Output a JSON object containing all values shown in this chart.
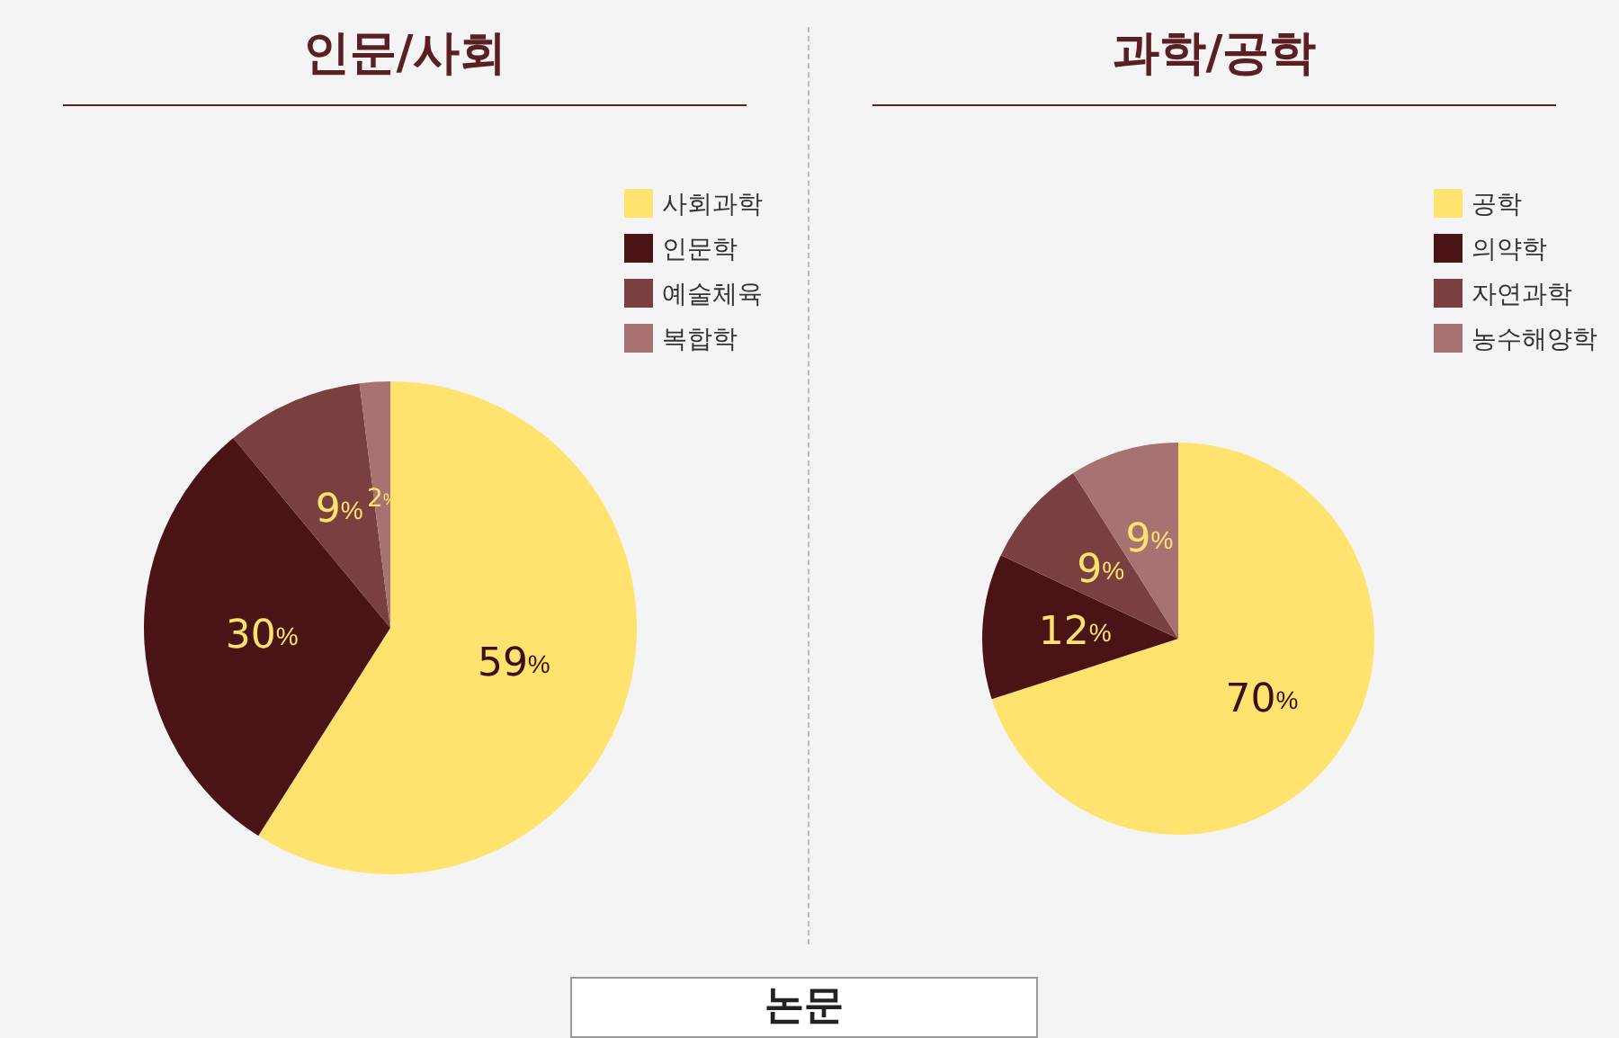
{
  "chart_data": [
    {
      "type": "pie",
      "title": "인문/사회",
      "categories": [
        "사회과학",
        "인문학",
        "예술체육",
        "복합학"
      ],
      "values": [
        59,
        30,
        9,
        2
      ],
      "value_labels": [
        "59%",
        "30%",
        "9%",
        "2%"
      ],
      "colors": [
        "#ffe36e",
        "#4a1416",
        "#7a3f40",
        "#a87272"
      ],
      "legend": "top right",
      "annotations": [
        "논문"
      ]
    },
    {
      "type": "pie",
      "title": "과학/공학",
      "categories": [
        "공학",
        "의약학",
        "자연과학",
        "농수해양학"
      ],
      "values": [
        70,
        12,
        9,
        9
      ],
      "value_labels": [
        "70%",
        "12%",
        "9%",
        "9%"
      ],
      "colors": [
        "#ffe36e",
        "#4a1416",
        "#7a3f40",
        "#a87272"
      ],
      "legend": "top right"
    }
  ]
}
